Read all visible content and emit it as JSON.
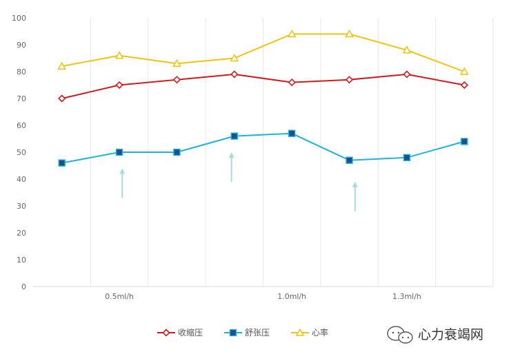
{
  "chart_data": {
    "type": "line",
    "ylim": [
      0,
      100
    ],
    "yticks": [
      0,
      10,
      20,
      30,
      40,
      50,
      60,
      70,
      80,
      90,
      100
    ],
    "x_points": [
      1,
      2,
      3,
      4,
      5,
      6,
      7,
      8
    ],
    "x_labels": [
      {
        "text": "0.5ml/h",
        "x": 2
      },
      {
        "text": "1.0ml/h",
        "x": 5
      },
      {
        "text": "1.3ml/h",
        "x": 7
      }
    ],
    "vertical_gridlines": [
      1.5,
      2.5,
      3.5,
      4.5,
      5.5,
      6.5,
      7.5
    ],
    "series": [
      {
        "name": "收缩压",
        "color": "#d7191c",
        "marker": "diamond",
        "values": [
          70,
          75,
          77,
          79,
          76,
          77,
          79,
          75
        ]
      },
      {
        "name": "舒张压",
        "color": "#1cb3dc",
        "marker": "square",
        "values": [
          46,
          50,
          50,
          56,
          57,
          47,
          48,
          54
        ]
      },
      {
        "name": "心率",
        "color": "#f2c20c",
        "marker": "triangle",
        "values": [
          82,
          86,
          83,
          85,
          94,
          94,
          88,
          80
        ]
      }
    ],
    "annotations": [
      {
        "type": "arrow",
        "x": 2.05,
        "y_start": 33,
        "y_end": 44,
        "color": "#a8dcd9"
      },
      {
        "type": "arrow",
        "x": 3.95,
        "y_start": 39,
        "y_end": 50,
        "color": "#a8dcd9"
      },
      {
        "type": "arrow",
        "x": 6.1,
        "y_start": 28,
        "y_end": 39,
        "color": "#a8dcd9"
      }
    ],
    "legend_position": "bottom-center"
  },
  "watermark": {
    "text": "心力衰竭网",
    "icon": "wechat-icon"
  }
}
